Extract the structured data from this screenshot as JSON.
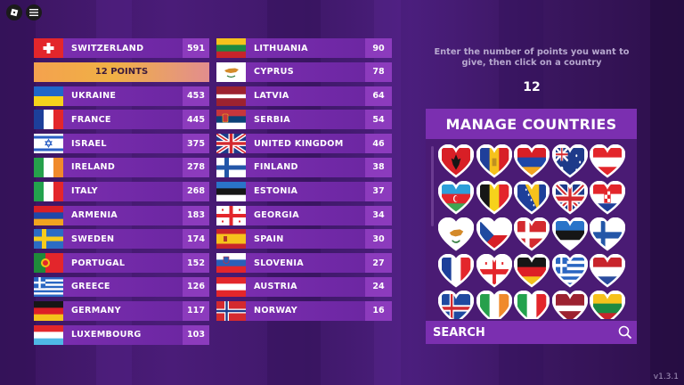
{
  "version": "v1.3.1",
  "twelve_points_label": "12 POINTS",
  "left_list": [
    {
      "country": "SWITZERLAND",
      "points": "591",
      "flag": "ch"
    },
    {
      "country": "12 POINTS",
      "points": "",
      "flag": "twelve"
    },
    {
      "country": "UKRAINE",
      "points": "453",
      "flag": "ua"
    },
    {
      "country": "FRANCE",
      "points": "445",
      "flag": "fr"
    },
    {
      "country": "ISRAEL",
      "points": "375",
      "flag": "il"
    },
    {
      "country": "IRELAND",
      "points": "278",
      "flag": "ie"
    },
    {
      "country": "ITALY",
      "points": "268",
      "flag": "it"
    },
    {
      "country": "ARMENIA",
      "points": "183",
      "flag": "am"
    },
    {
      "country": "SWEDEN",
      "points": "174",
      "flag": "se"
    },
    {
      "country": "PORTUGAL",
      "points": "152",
      "flag": "pt"
    },
    {
      "country": "GREECE",
      "points": "126",
      "flag": "gr"
    },
    {
      "country": "GERMANY",
      "points": "117",
      "flag": "de"
    },
    {
      "country": "LUXEMBOURG",
      "points": "103",
      "flag": "lu"
    }
  ],
  "right_list": [
    {
      "country": "LITHUANIA",
      "points": "90",
      "flag": "lt"
    },
    {
      "country": "CYPRUS",
      "points": "78",
      "flag": "cy"
    },
    {
      "country": "LATVIA",
      "points": "64",
      "flag": "lv"
    },
    {
      "country": "SERBIA",
      "points": "54",
      "flag": "rs"
    },
    {
      "country": "UNITED KINGDOM",
      "points": "46",
      "flag": "gb"
    },
    {
      "country": "FINLAND",
      "points": "38",
      "flag": "fi"
    },
    {
      "country": "ESTONIA",
      "points": "37",
      "flag": "ee"
    },
    {
      "country": "GEORGIA",
      "points": "34",
      "flag": "ge"
    },
    {
      "country": "SPAIN",
      "points": "30",
      "flag": "es"
    },
    {
      "country": "SLOVENIA",
      "points": "27",
      "flag": "si"
    },
    {
      "country": "AUSTRIA",
      "points": "24",
      "flag": "at"
    },
    {
      "country": "NORWAY",
      "points": "16",
      "flag": "no"
    }
  ],
  "instruction": "Enter the number of points you want to give, then click on a country",
  "points_to_give": "12",
  "panel": {
    "title": "MANAGE COUNTRIES",
    "search_label": "SEARCH",
    "hearts": [
      "al",
      "ad",
      "am",
      "au",
      "at",
      "az",
      "be",
      "ba",
      "gb",
      "hr",
      "cy",
      "cz",
      "dk",
      "ee",
      "fi",
      "fr",
      "ge",
      "de",
      "gr",
      "nl",
      "is",
      "ie",
      "it",
      "lv",
      "lt"
    ]
  }
}
